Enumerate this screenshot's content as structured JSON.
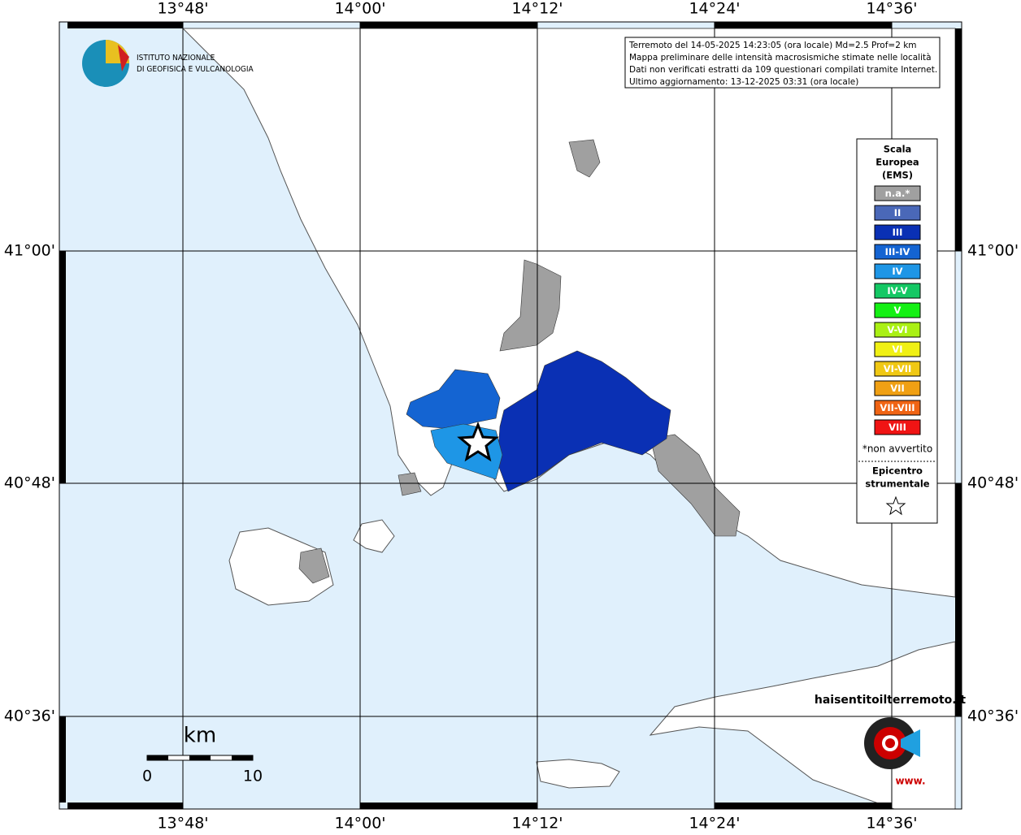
{
  "map": {
    "lon_labels": [
      "13°48'",
      "14°00'",
      "14°12'",
      "14°24'",
      "14°36'"
    ],
    "lat_labels": [
      "41°00'",
      "40°48'",
      "40°36'"
    ],
    "info": [
      "Terremoto del 14-05-2025 14:23:05 (ora locale) Md=2.5 Prof=2 km",
      "Mappa preliminare delle intensità macrosismiche stimate nelle località",
      "Dati non verificati estratti da 109 questionari compilati tramite Internet.",
      "Ultimo aggiornamento: 13-12-2025 03:31 (ora locale)"
    ],
    "logo": [
      "ISTITUTO NAZIONALE",
      "DI GEOFISICA E VULCANOLOGIA"
    ],
    "legend": {
      "title": [
        "Scala",
        "Europea",
        "(EMS)"
      ],
      "classes": [
        {
          "label": "n.a.*",
          "color": "#a0a0a0"
        },
        {
          "label": "II",
          "color": "#4a68b8"
        },
        {
          "label": "III",
          "color": "#0a30b4"
        },
        {
          "label": "III-IV",
          "color": "#1464d2"
        },
        {
          "label": "IV",
          "color": "#1e96e6"
        },
        {
          "label": "IV-V",
          "color": "#14c864"
        },
        {
          "label": "V",
          "color": "#14f014"
        },
        {
          "label": "V-VI",
          "color": "#aaf014"
        },
        {
          "label": "VI",
          "color": "#f0f014"
        },
        {
          "label": "VI-VII",
          "color": "#f0c814"
        },
        {
          "label": "VII",
          "color": "#f0a014"
        },
        {
          "label": "VII-VIII",
          "color": "#f06414"
        },
        {
          "label": "VIII",
          "color": "#f01414"
        }
      ],
      "note": "*non avvertito",
      "epicenter": [
        "Epicentro",
        "strumentale"
      ]
    },
    "scale_bar": {
      "unit": "km",
      "labels": [
        "0",
        "10"
      ]
    },
    "brand": {
      "name": "haisentitoilterremoto.it",
      "prefix": "www."
    }
  }
}
